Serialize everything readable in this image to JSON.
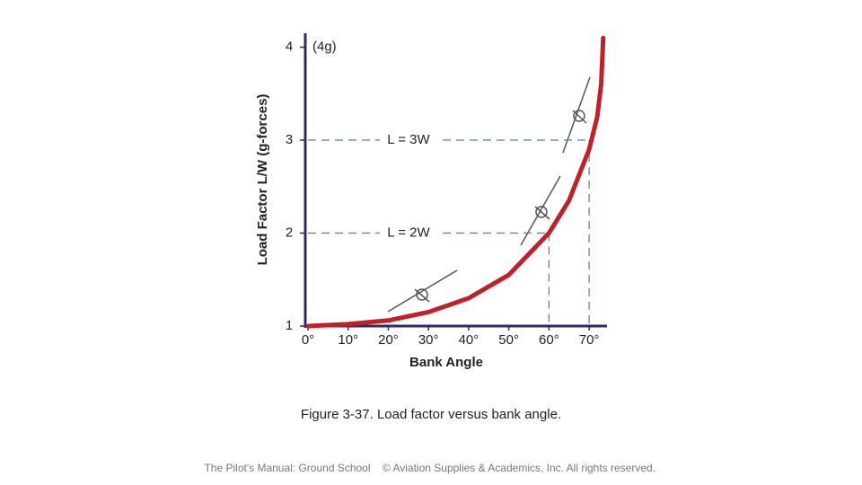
{
  "chart_data": {
    "type": "line",
    "xlabel": "Bank Angle",
    "ylabel": "Load Factor   L/W   (g-forces)",
    "annotation": "(4g)",
    "x": [
      0,
      10,
      20,
      30,
      40,
      50,
      60,
      65,
      70,
      72,
      73,
      73.5
    ],
    "series": [
      {
        "color": "#c0202a",
        "values": [
          1,
          1.02,
          1.06,
          1.15,
          1.3,
          1.55,
          2,
          2.35,
          2.9,
          3.25,
          3.6,
          4.1
        ]
      }
    ],
    "reference_lines": [
      {
        "label": "L = 3W",
        "x": 70,
        "y": 3
      },
      {
        "label": "L = 2W",
        "x": 60,
        "y": 2
      }
    ],
    "xlim": [
      0,
      74
    ],
    "ylim": [
      1,
      4.15
    ],
    "xticks": [
      {
        "value": 0,
        "label": "0°"
      },
      {
        "value": 10,
        "label": "10°"
      },
      {
        "value": 20,
        "label": "20°"
      },
      {
        "value": 30,
        "label": "30°"
      },
      {
        "value": 40,
        "label": "40°"
      },
      {
        "value": 50,
        "label": "50°"
      },
      {
        "value": 60,
        "label": "60°"
      },
      {
        "value": 70,
        "label": "70°"
      }
    ],
    "yticks": [
      1,
      2,
      3,
      4
    ]
  },
  "caption": "Figure 3-37. Load factor versus bank angle.",
  "footer": [
    "The Pilot's Manual: Ground School",
    "© Aviation Supplies & Academics, Inc. All rights reserved."
  ]
}
